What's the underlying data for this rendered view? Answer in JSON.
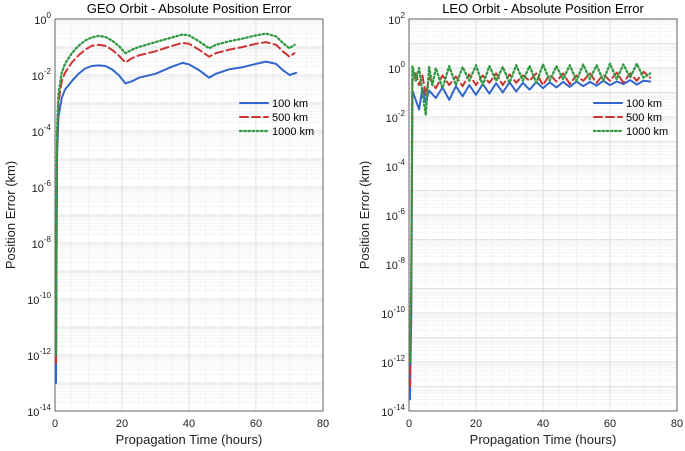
{
  "colors": {
    "s100": "#3366cc",
    "s500": "#cc3333",
    "s1000": "#339944",
    "grid": "#d8d8d8",
    "minorgrid": "#eeeeee"
  },
  "chart_data": [
    {
      "type": "line",
      "title": "GEO Orbit - Absolute Position Error",
      "xlabel": "Propagation Time (hours)",
      "ylabel": "Position Error (km)",
      "yscale": "log",
      "xlim": [
        0,
        80
      ],
      "ylim_exp": [
        -14,
        0
      ],
      "xticks": [
        0,
        20,
        40,
        60,
        80
      ],
      "ytick_exps": [
        -14,
        -12,
        -10,
        -8,
        -6,
        -4,
        -2,
        0
      ],
      "legend_location": "right-middle",
      "series": [
        {
          "name": "100 km",
          "style": "solid",
          "color_key": "s100",
          "x": [
            0.3,
            0.6,
            1,
            2,
            3,
            5,
            7,
            9,
            11,
            13,
            15,
            17,
            19,
            21,
            23,
            25,
            30,
            35,
            38,
            40,
            43,
            46,
            48,
            52,
            56,
            60,
            63,
            66,
            68,
            70,
            72
          ],
          "y": [
            1e-13,
            1e-05,
            0.0003,
            0.0015,
            0.003,
            0.006,
            0.011,
            0.017,
            0.021,
            0.022,
            0.021,
            0.016,
            0.01,
            0.005,
            0.006,
            0.008,
            0.011,
            0.02,
            0.027,
            0.024,
            0.015,
            0.008,
            0.011,
            0.016,
            0.019,
            0.025,
            0.03,
            0.025,
            0.015,
            0.01,
            0.012
          ]
        },
        {
          "name": "500 km",
          "style": "dashed",
          "color_key": "s500",
          "x": [
            0.3,
            0.6,
            1,
            2,
            3,
            5,
            7,
            9,
            11,
            13,
            15,
            17,
            19,
            21,
            23,
            25,
            30,
            35,
            38,
            40,
            43,
            46,
            48,
            52,
            56,
            60,
            63,
            66,
            68,
            70,
            71.5
          ],
          "y": [
            5e-13,
            5e-05,
            0.001,
            0.006,
            0.012,
            0.028,
            0.05,
            0.08,
            0.11,
            0.12,
            0.11,
            0.08,
            0.05,
            0.028,
            0.04,
            0.05,
            0.07,
            0.11,
            0.14,
            0.13,
            0.08,
            0.045,
            0.06,
            0.08,
            0.1,
            0.13,
            0.15,
            0.12,
            0.07,
            0.045,
            0.06
          ]
        },
        {
          "name": "1000 km",
          "style": "dotted",
          "color_key": "s1000",
          "x": [
            0.3,
            0.6,
            1,
            2,
            3,
            5,
            7,
            9,
            11,
            13,
            15,
            17,
            19,
            21,
            23,
            25,
            30,
            35,
            38,
            40,
            43,
            46,
            48,
            52,
            56,
            60,
            63,
            66,
            68,
            70,
            71.5
          ],
          "y": [
            1e-12,
            0.0001,
            0.002,
            0.012,
            0.025,
            0.06,
            0.11,
            0.17,
            0.22,
            0.25,
            0.23,
            0.17,
            0.11,
            0.06,
            0.08,
            0.1,
            0.15,
            0.22,
            0.28,
            0.26,
            0.16,
            0.09,
            0.12,
            0.16,
            0.2,
            0.26,
            0.3,
            0.24,
            0.14,
            0.09,
            0.12
          ]
        }
      ]
    },
    {
      "type": "line",
      "title": "LEO Orbit - Absolute Position Error",
      "xlabel": "Propagation Time (hours)",
      "ylabel": "Position Error (km)",
      "yscale": "log",
      "xlim": [
        0,
        80
      ],
      "ylim_exp": [
        -14,
        2
      ],
      "xticks": [
        0,
        20,
        40,
        60,
        80
      ],
      "ytick_exps": [
        -14,
        -12,
        -10,
        -8,
        -6,
        -4,
        -2,
        0,
        2
      ],
      "legend_location": "right-upper",
      "series": [
        {
          "name": "100 km",
          "style": "solid",
          "color_key": "s100",
          "x": [
            0.3,
            0.7,
            1,
            2,
            3,
            4,
            5,
            6,
            8,
            10,
            12,
            14,
            16,
            18,
            20,
            22,
            24,
            26,
            28,
            30,
            32,
            34,
            36,
            38,
            40,
            42,
            44,
            46,
            48,
            50,
            52,
            54,
            56,
            58,
            60,
            62,
            64,
            66,
            68,
            70,
            72
          ],
          "y": [
            3e-14,
            1e-10,
            0.12,
            0.05,
            0.02,
            0.15,
            0.04,
            0.12,
            0.06,
            0.16,
            0.05,
            0.18,
            0.07,
            0.2,
            0.08,
            0.22,
            0.09,
            0.24,
            0.1,
            0.26,
            0.11,
            0.25,
            0.13,
            0.27,
            0.15,
            0.26,
            0.16,
            0.27,
            0.17,
            0.28,
            0.18,
            0.27,
            0.19,
            0.3,
            0.2,
            0.28,
            0.22,
            0.32,
            0.21,
            0.3,
            0.28
          ]
        },
        {
          "name": "500 km",
          "style": "dashed",
          "color_key": "s500",
          "x": [
            0.3,
            0.7,
            1,
            2,
            3,
            4,
            5,
            6,
            8,
            10,
            12,
            14,
            16,
            18,
            20,
            22,
            24,
            26,
            28,
            30,
            32,
            34,
            36,
            38,
            40,
            42,
            44,
            46,
            48,
            50,
            52,
            54,
            56,
            58,
            60,
            62,
            64,
            66,
            68,
            70,
            72
          ],
          "y": [
            1e-13,
            1e-09,
            0.3,
            0.6,
            0.2,
            0.5,
            0.08,
            0.4,
            0.15,
            0.5,
            0.2,
            0.45,
            0.18,
            0.55,
            0.2,
            0.5,
            0.25,
            0.6,
            0.2,
            0.55,
            0.25,
            0.5,
            0.3,
            0.6,
            0.2,
            0.55,
            0.28,
            0.6,
            0.22,
            0.5,
            0.3,
            0.6,
            0.25,
            0.55,
            0.3,
            0.65,
            0.25,
            0.6,
            0.3,
            0.7,
            0.4
          ]
        },
        {
          "name": "1000 km",
          "style": "dotted",
          "color_key": "s1000",
          "x": [
            0.3,
            0.7,
            1,
            2,
            3,
            4,
            5,
            6,
            7,
            8,
            10,
            12,
            14,
            16,
            18,
            20,
            22,
            24,
            26,
            28,
            30,
            32,
            34,
            36,
            38,
            40,
            42,
            44,
            46,
            48,
            50,
            52,
            54,
            56,
            58,
            60,
            62,
            64,
            66,
            68,
            70,
            72
          ],
          "y": [
            1e-12,
            1e-08,
            1.2,
            0.3,
            1.0,
            0.1,
            0.012,
            1.1,
            0.2,
            1.0,
            0.15,
            1.2,
            0.2,
            1.1,
            0.3,
            1.3,
            0.2,
            1.2,
            0.3,
            1.1,
            0.25,
            1.3,
            0.3,
            1.2,
            0.25,
            1.4,
            0.3,
            1.2,
            0.35,
            1.3,
            0.3,
            1.4,
            0.35,
            1.3,
            0.3,
            1.5,
            0.35,
            1.4,
            0.4,
            1.5,
            0.4,
            0.6
          ]
        }
      ]
    }
  ]
}
